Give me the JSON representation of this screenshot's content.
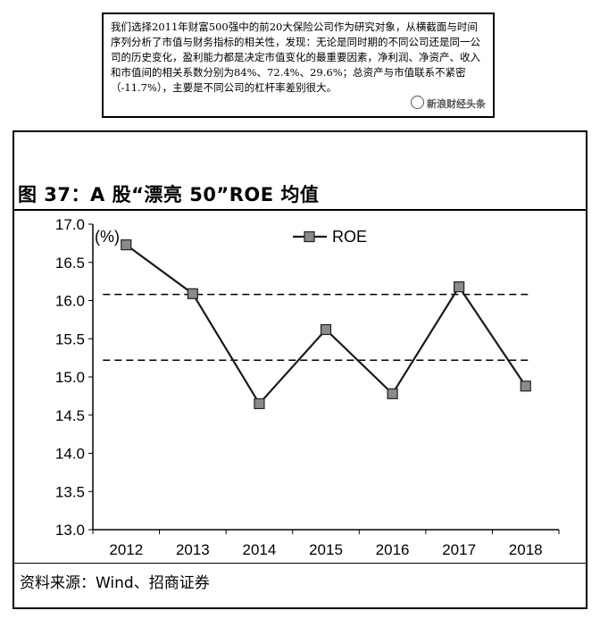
{
  "quote": {
    "text": "我们选择2011年财富500强中的前20大保险公司作为研究对象，从横截面与时间序列分析了市值与财务指标的相关性，发现：无论是同时期的不同公司还是同一公司的历史变化，盈利能力都是决定市值变化的最重要因素，净利润、净资产、收入和市值间的相关系数分别为84%、72.4%、29.6%；总资产与市值联系不紧密（-11.7%），主要是不同公司的杠杆率差别很大。",
    "watermark": "新浪财经头条"
  },
  "figure": {
    "title": "图 37：A 股“漂亮 50”ROE 均值",
    "source": "资料来源：Wind、招商证券"
  },
  "chart_data": {
    "type": "line",
    "categories": [
      "2012",
      "2013",
      "2014",
      "2015",
      "2016",
      "2017",
      "2018"
    ],
    "series": [
      {
        "name": "ROE",
        "values": [
          16.73,
          16.09,
          14.65,
          15.62,
          14.78,
          16.18,
          14.88
        ],
        "color": "#1a1a1a"
      }
    ],
    "reference_lines": [
      16.08,
      15.22
    ],
    "ylabel": "(%)",
    "ylim": [
      13.0,
      17.0
    ],
    "yticks": [
      "13.0",
      "13.5",
      "14.0",
      "14.5",
      "15.0",
      "15.5",
      "16.0",
      "16.5",
      "17.0"
    ],
    "legend_position": "top-center",
    "grid": false
  }
}
